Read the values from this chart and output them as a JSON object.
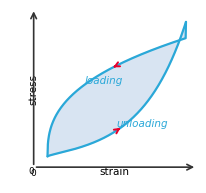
{
  "xlabel": "strain",
  "ylabel": "stress",
  "loading_label": "loading",
  "unloading_label": "unloading",
  "curve_color": "#2aa8d8",
  "fill_color": "#b8cfe8",
  "fill_alpha": 0.55,
  "arrow_color": "#e8002a",
  "label_color": "#2aa8d8",
  "axis_color": "#333333",
  "background_color": "#ffffff",
  "figsize": [
    2.06,
    1.93
  ],
  "dpi": 100
}
